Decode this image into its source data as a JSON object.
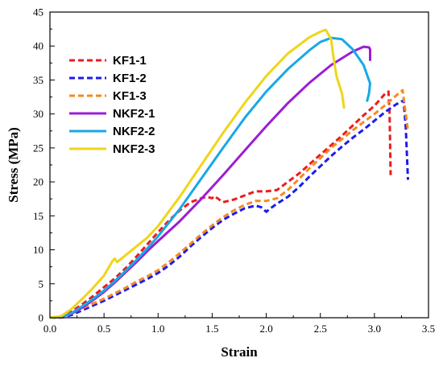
{
  "chart_data": {
    "type": "line",
    "xlabel": "Strain",
    "ylabel": "Stress (MPa)",
    "xlim": [
      0,
      3.5
    ],
    "ylim": [
      0,
      45
    ],
    "xticks": [
      "0.0",
      "0.5",
      "1.0",
      "1.5",
      "2.0",
      "2.5",
      "3.0",
      "3.5"
    ],
    "yticks": [
      "0",
      "5",
      "10",
      "15",
      "20",
      "25",
      "30",
      "35",
      "40",
      "45"
    ],
    "grid": false,
    "legend_position": "top-left",
    "series": [
      {
        "name": "KF1-1",
        "color": "#ee1c1c",
        "dash": true,
        "x": [
          0.0,
          0.1,
          0.2,
          0.3,
          0.4,
          0.5,
          0.6,
          0.7,
          0.8,
          0.9,
          1.0,
          1.1,
          1.2,
          1.3,
          1.4,
          1.45,
          1.5,
          1.52,
          1.6,
          1.7,
          1.8,
          1.9,
          2.0,
          2.1,
          2.2,
          2.3,
          2.4,
          2.5,
          2.6,
          2.7,
          2.8,
          2.9,
          3.0,
          3.1,
          3.13,
          3.14,
          3.15
        ],
        "y": [
          0.0,
          0.2,
          0.9,
          2.0,
          3.2,
          4.5,
          5.8,
          7.3,
          9.0,
          10.8,
          12.6,
          14.3,
          15.8,
          17.0,
          17.6,
          17.8,
          17.6,
          17.9,
          17.0,
          17.4,
          18.0,
          18.6,
          18.6,
          18.8,
          20.0,
          21.2,
          22.6,
          24.0,
          25.4,
          26.8,
          28.3,
          29.8,
          31.2,
          33.0,
          33.3,
          30.0,
          21.0
        ]
      },
      {
        "name": "KF1-2",
        "color": "#1c1cee",
        "dash": true,
        "x": [
          0.0,
          0.1,
          0.2,
          0.3,
          0.4,
          0.5,
          0.6,
          0.7,
          0.8,
          0.9,
          1.0,
          1.1,
          1.2,
          1.3,
          1.4,
          1.5,
          1.6,
          1.7,
          1.8,
          1.9,
          1.95,
          2.0,
          2.03,
          2.1,
          2.2,
          2.3,
          2.4,
          2.5,
          2.6,
          2.7,
          2.8,
          2.9,
          3.0,
          3.1,
          3.2,
          3.27,
          3.29,
          3.31
        ],
        "y": [
          0.0,
          0.0,
          0.4,
          1.1,
          1.8,
          2.5,
          3.3,
          4.1,
          4.9,
          5.7,
          6.6,
          7.7,
          9.0,
          10.5,
          11.9,
          13.2,
          14.4,
          15.3,
          16.1,
          16.5,
          16.3,
          15.6,
          16.0,
          16.8,
          17.8,
          19.2,
          20.8,
          22.3,
          23.8,
          25.2,
          26.5,
          27.7,
          29.0,
          30.3,
          31.4,
          32.0,
          28.0,
          20.3
        ]
      },
      {
        "name": "KF1-3",
        "color": "#f58a1f",
        "dash": true,
        "x": [
          0.0,
          0.1,
          0.2,
          0.3,
          0.4,
          0.5,
          0.6,
          0.7,
          0.8,
          0.9,
          1.0,
          1.1,
          1.2,
          1.3,
          1.4,
          1.5,
          1.6,
          1.7,
          1.8,
          1.9,
          2.0,
          2.1,
          2.2,
          2.3,
          2.4,
          2.5,
          2.6,
          2.7,
          2.8,
          2.9,
          3.0,
          3.1,
          3.2,
          3.26,
          3.29,
          3.31
        ],
        "y": [
          0.0,
          0.0,
          0.6,
          1.4,
          2.1,
          2.8,
          3.6,
          4.4,
          5.3,
          6.1,
          7.0,
          8.2,
          9.5,
          10.9,
          12.3,
          13.6,
          14.8,
          15.8,
          16.6,
          17.2,
          17.2,
          17.6,
          18.8,
          20.4,
          22.0,
          23.5,
          25.0,
          26.3,
          27.6,
          28.8,
          30.0,
          31.3,
          32.7,
          33.5,
          30.0,
          27.5
        ]
      },
      {
        "name": "NKF2-1",
        "color": "#9b1ed4",
        "dash": false,
        "x": [
          0.0,
          0.1,
          0.2,
          0.3,
          0.4,
          0.5,
          0.6,
          0.7,
          0.8,
          0.9,
          1.0,
          1.2,
          1.4,
          1.6,
          1.8,
          2.0,
          2.2,
          2.4,
          2.6,
          2.8,
          2.9,
          2.95,
          2.96,
          2.96
        ],
        "y": [
          0.0,
          0.1,
          0.6,
          1.5,
          2.6,
          3.8,
          5.2,
          6.7,
          8.2,
          9.8,
          11.3,
          14.2,
          17.5,
          21.0,
          24.6,
          28.2,
          31.6,
          34.6,
          37.2,
          39.2,
          39.9,
          39.8,
          39.5,
          37.8
        ]
      },
      {
        "name": "NKF2-2",
        "color": "#18a8e8",
        "dash": false,
        "x": [
          0.0,
          0.1,
          0.2,
          0.3,
          0.4,
          0.5,
          0.6,
          0.7,
          0.8,
          0.9,
          1.0,
          1.2,
          1.4,
          1.6,
          1.8,
          2.0,
          2.2,
          2.4,
          2.5,
          2.6,
          2.7,
          2.8,
          2.9,
          2.96,
          2.95,
          2.93
        ],
        "y": [
          0.0,
          0.1,
          0.7,
          1.7,
          2.8,
          4.0,
          5.4,
          6.9,
          8.5,
          10.2,
          12.0,
          16.0,
          20.5,
          25.0,
          29.4,
          33.3,
          36.6,
          39.4,
          40.6,
          41.2,
          41.0,
          39.5,
          37.2,
          34.5,
          33.0,
          31.8
        ]
      },
      {
        "name": "NKF2-3",
        "color": "#efd51a",
        "dash": false,
        "x": [
          0.0,
          0.1,
          0.2,
          0.3,
          0.4,
          0.5,
          0.58,
          0.6,
          0.62,
          0.7,
          0.8,
          0.9,
          1.0,
          1.2,
          1.4,
          1.6,
          1.8,
          2.0,
          2.2,
          2.4,
          2.5,
          2.55,
          2.6,
          2.62,
          2.65,
          2.7,
          2.72
        ],
        "y": [
          0.0,
          0.2,
          1.3,
          2.8,
          4.4,
          6.2,
          8.4,
          8.7,
          8.2,
          9.2,
          10.5,
          11.8,
          13.5,
          17.8,
          22.5,
          27.2,
          31.6,
          35.6,
          38.9,
          41.3,
          42.1,
          42.4,
          41.0,
          38.5,
          35.5,
          33.0,
          30.8
        ]
      }
    ]
  }
}
